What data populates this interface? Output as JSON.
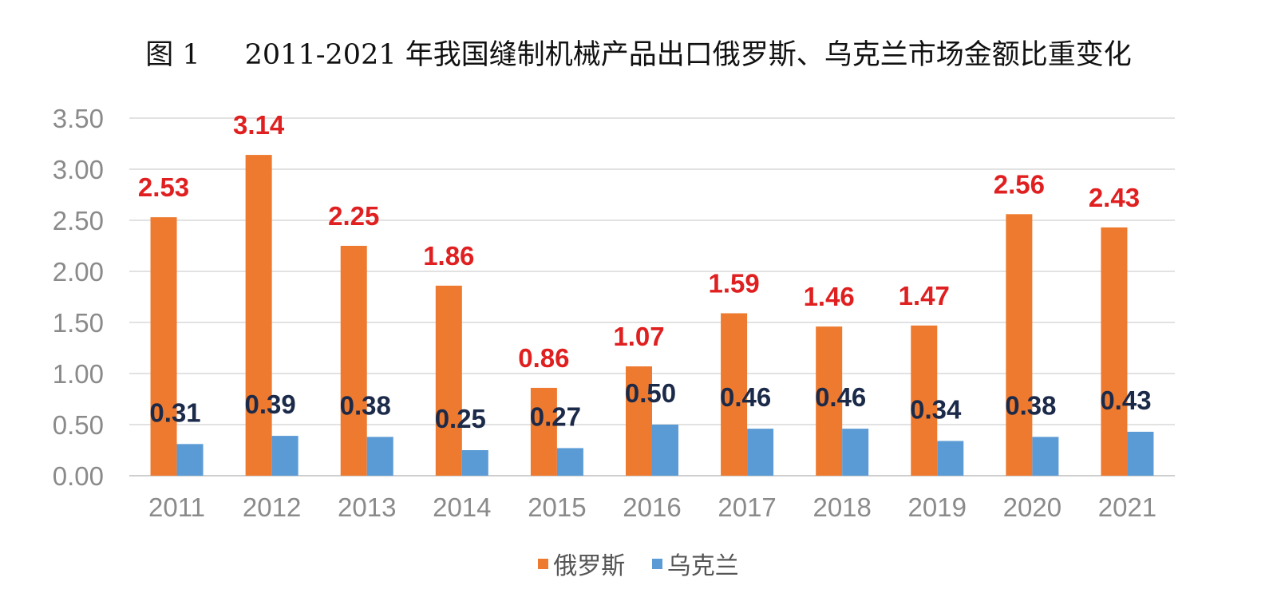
{
  "chart_data": {
    "type": "bar",
    "title_num": "图 1",
    "title_text": "2011-2021 年我国缝制机械产品出口俄罗斯、乌克兰市场金额比重变化",
    "categories": [
      "2011",
      "2012",
      "2013",
      "2014",
      "2015",
      "2016",
      "2017",
      "2018",
      "2019",
      "2020",
      "2021"
    ],
    "series": [
      {
        "name": "俄罗斯",
        "color": "#ee7a2f",
        "label_color": "#e02020",
        "values": [
          2.53,
          3.14,
          2.25,
          1.86,
          0.86,
          1.07,
          1.59,
          1.46,
          1.47,
          2.56,
          2.43
        ]
      },
      {
        "name": "乌克兰",
        "color": "#5b9bd5",
        "label_color": "#1c2a4a",
        "values": [
          0.31,
          0.39,
          0.38,
          0.25,
          0.27,
          0.5,
          0.46,
          0.46,
          0.34,
          0.38,
          0.43
        ]
      }
    ],
    "yticks": [
      "0.00",
      "0.50",
      "1.00",
      "1.50",
      "2.00",
      "2.50",
      "3.00",
      "3.50"
    ],
    "ylim": [
      0,
      3.5
    ],
    "grid": true,
    "legend": "bottom"
  }
}
